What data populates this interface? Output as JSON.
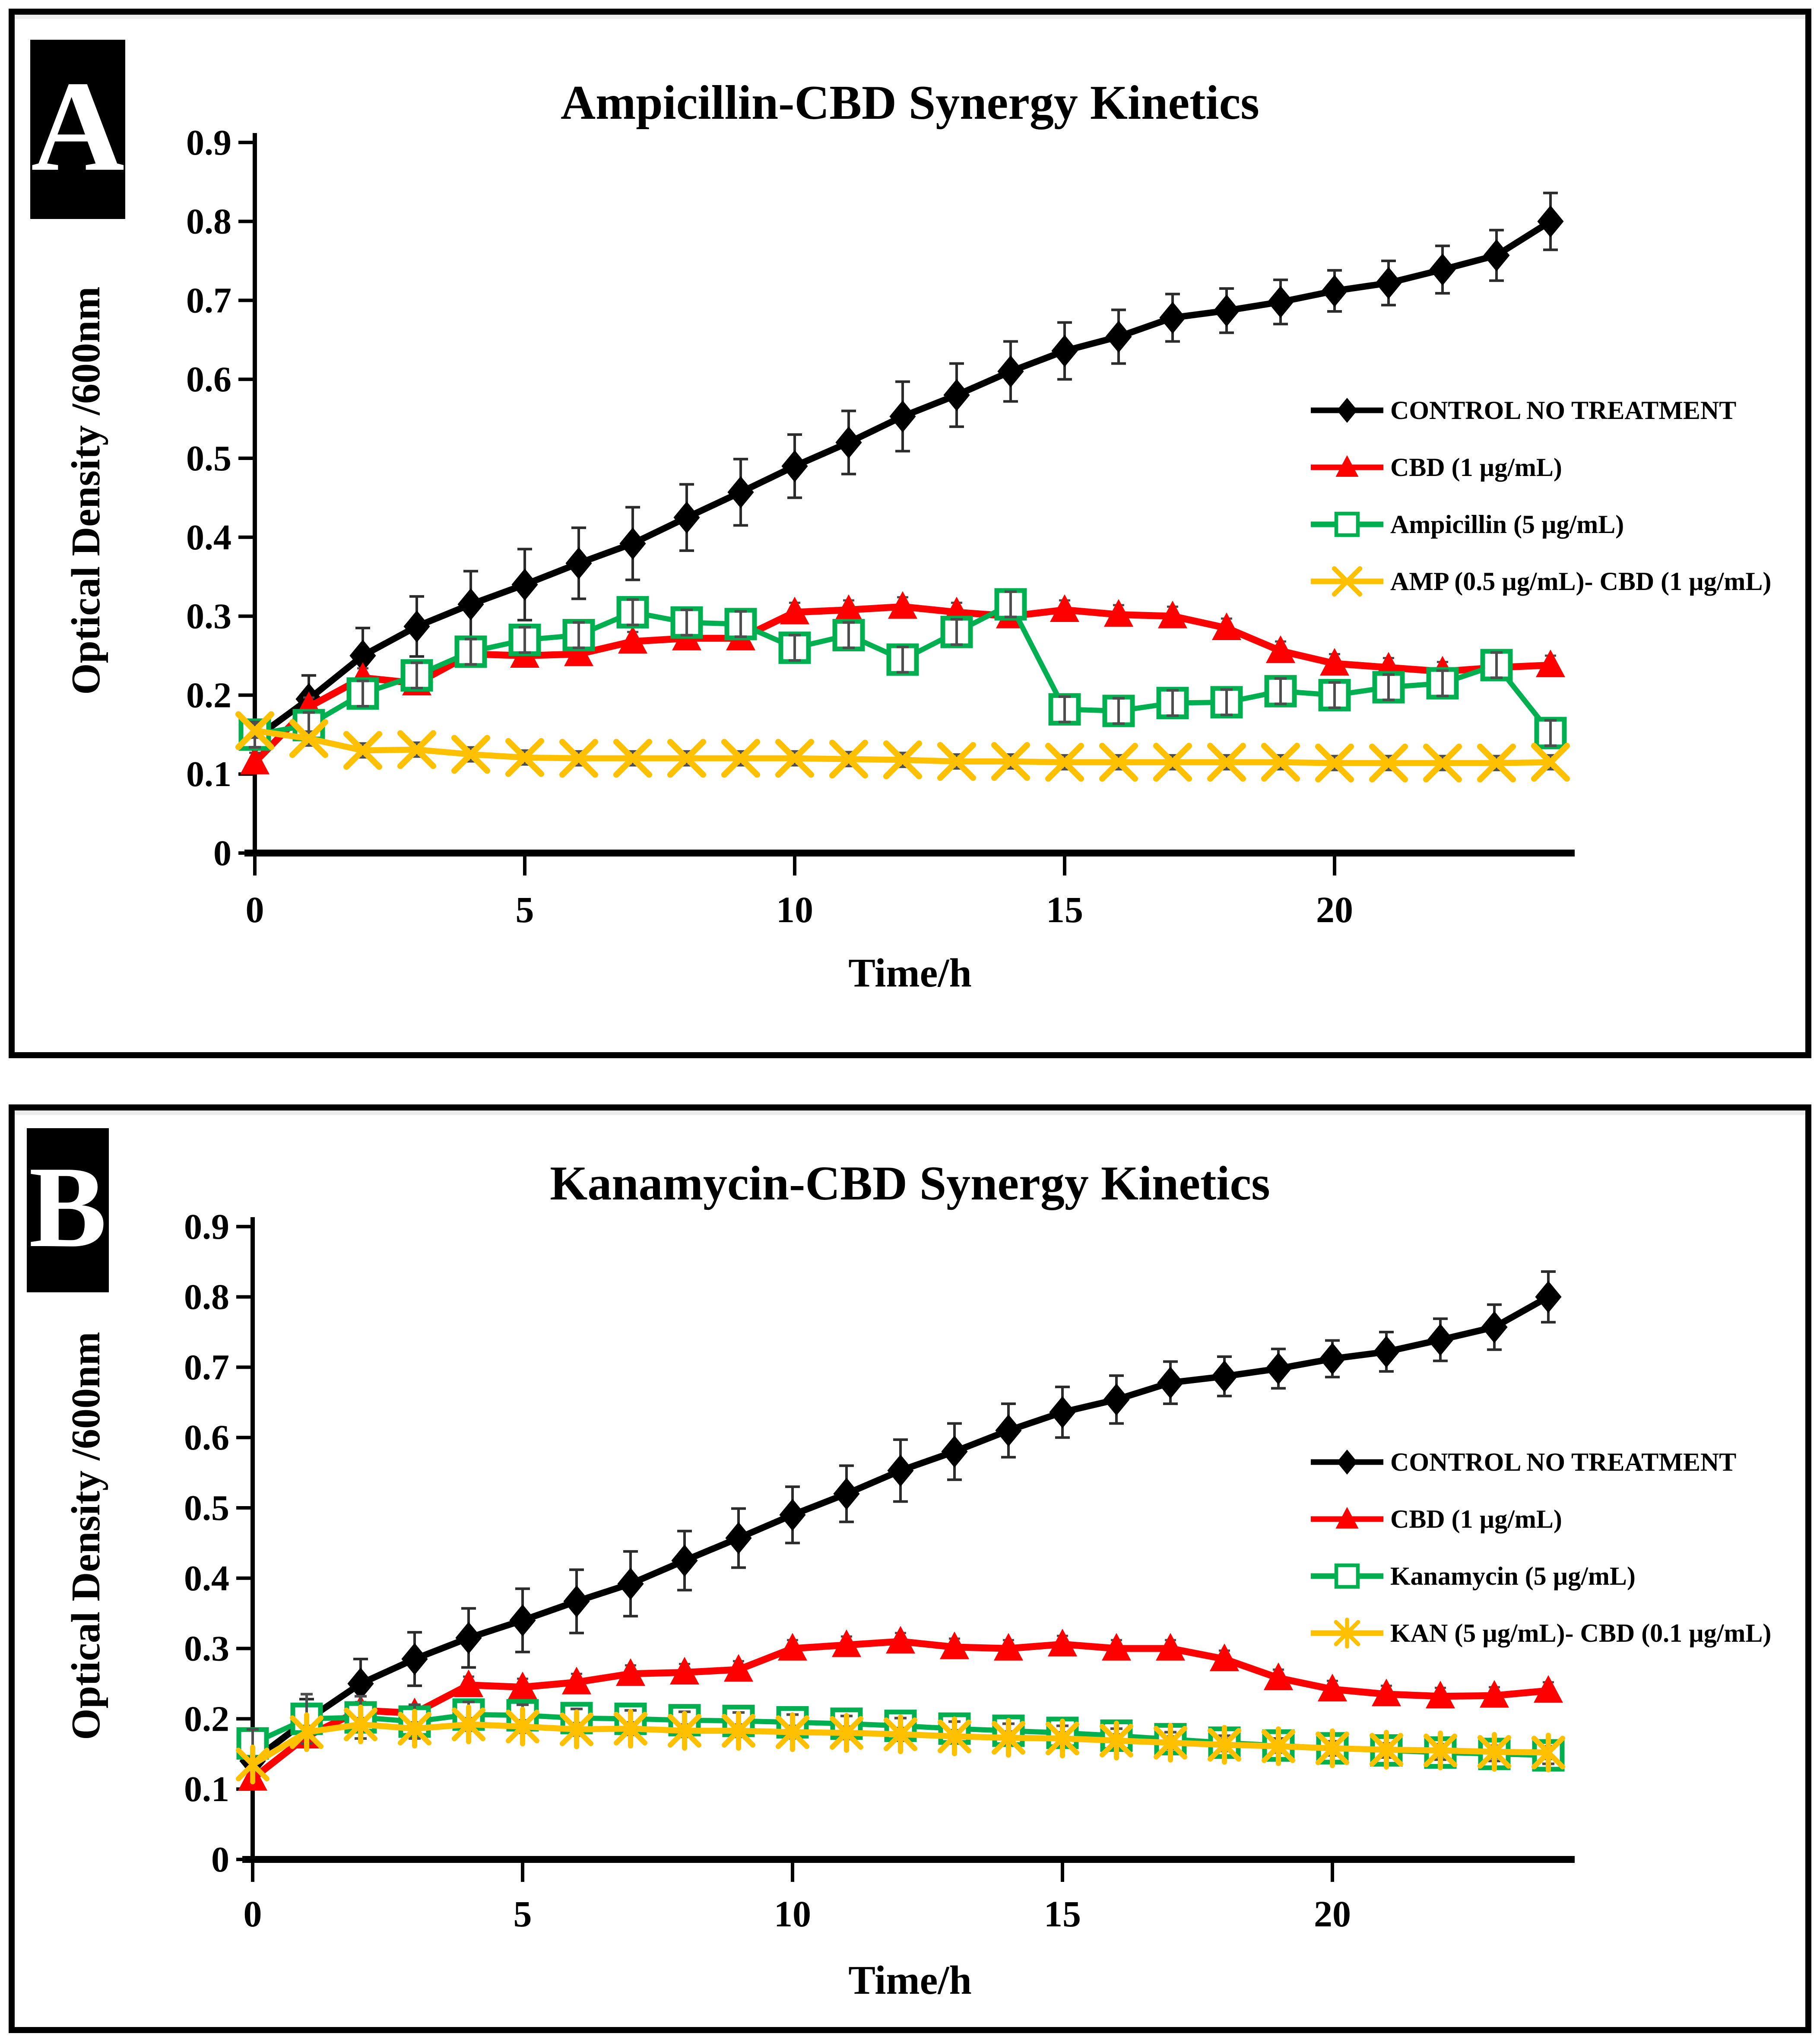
{
  "figure": {
    "panels": [
      {
        "badge": "A"
      },
      {
        "badge": "B"
      }
    ]
  },
  "chart_data": [
    {
      "type": "line",
      "title": "Ampicillin-CBD Synergy Kinetics",
      "xlabel": "Time/h",
      "ylabel": "Optical Density /600nm",
      "x": [
        0,
        1,
        2,
        3,
        4,
        5,
        6,
        7,
        8,
        9,
        10,
        11,
        12,
        13,
        14,
        15,
        16,
        17,
        18,
        19,
        20,
        21,
        22,
        23,
        24
      ],
      "x_ticks": [
        0,
        5,
        10,
        15,
        20
      ],
      "y_ticks": [
        0,
        0.1,
        0.2,
        0.3,
        0.4,
        0.5,
        0.6,
        0.7,
        0.8,
        0.9
      ],
      "xlim": [
        0,
        24.5
      ],
      "ylim": [
        0,
        0.9
      ],
      "grid": false,
      "legend_position": "middle-right",
      "series": [
        {
          "name": "CONTROL NO TREATMENT",
          "color": "#000000",
          "marker": "diamond",
          "line_width": 15,
          "error": [
            0.01,
            0.03,
            0.035,
            0.038,
            0.042,
            0.045,
            0.045,
            0.046,
            0.042,
            0.042,
            0.04,
            0.04,
            0.044,
            0.04,
            0.038,
            0.036,
            0.034,
            0.03,
            0.028,
            0.028,
            0.026,
            0.028,
            0.03,
            0.032,
            0.036
          ],
          "values": [
            0.145,
            0.195,
            0.25,
            0.287,
            0.315,
            0.34,
            0.367,
            0.392,
            0.425,
            0.457,
            0.49,
            0.52,
            0.553,
            0.58,
            0.61,
            0.636,
            0.654,
            0.678,
            0.687,
            0.698,
            0.712,
            0.722,
            0.739,
            0.757,
            0.8
          ]
        },
        {
          "name": "CBD (1 µg/mL)",
          "color": "#FF0000",
          "marker": "triangle",
          "line_width": 16,
          "error": 0.012,
          "values": [
            0.115,
            0.185,
            0.222,
            0.215,
            0.252,
            0.25,
            0.252,
            0.268,
            0.272,
            0.272,
            0.305,
            0.308,
            0.312,
            0.305,
            0.3,
            0.308,
            0.302,
            0.3,
            0.285,
            0.256,
            0.24,
            0.235,
            0.23,
            0.235,
            0.238
          ]
        },
        {
          "name": "Ampicillin (5 µg/mL)",
          "color": "#00B050",
          "marker": "square-open",
          "line_width": 12,
          "error": 0.016,
          "values": [
            0.15,
            0.162,
            0.202,
            0.225,
            0.255,
            0.27,
            0.276,
            0.305,
            0.292,
            0.29,
            0.26,
            0.276,
            0.245,
            0.28,
            0.315,
            0.182,
            0.18,
            0.19,
            0.191,
            0.205,
            0.2,
            0.21,
            0.215,
            0.238,
            0.152
          ]
        },
        {
          "name": "AMP (0.5 µg/mL)- CBD (1 µg/mL)",
          "color": "#FFC000",
          "marker": "x",
          "line_width": 14,
          "error": 0.009,
          "values": [
            0.155,
            0.145,
            0.13,
            0.131,
            0.125,
            0.121,
            0.12,
            0.12,
            0.12,
            0.12,
            0.12,
            0.119,
            0.118,
            0.116,
            0.116,
            0.115,
            0.115,
            0.115,
            0.115,
            0.115,
            0.114,
            0.114,
            0.114,
            0.114,
            0.115
          ]
        }
      ]
    },
    {
      "type": "line",
      "title": "Kanamycin-CBD Synergy Kinetics",
      "xlabel": "Time/h",
      "ylabel": "Optical Density /600nm",
      "x": [
        0,
        1,
        2,
        3,
        4,
        5,
        6,
        7,
        8,
        9,
        10,
        11,
        12,
        13,
        14,
        15,
        16,
        17,
        18,
        19,
        20,
        21,
        22,
        23,
        24
      ],
      "x_ticks": [
        0,
        5,
        10,
        15,
        20
      ],
      "y_ticks": [
        0,
        0.1,
        0.2,
        0.3,
        0.4,
        0.5,
        0.6,
        0.7,
        0.8,
        0.9
      ],
      "xlim": [
        0,
        24.5
      ],
      "ylim": [
        0,
        0.9
      ],
      "grid": false,
      "legend_position": "middle-right",
      "series": [
        {
          "name": "CONTROL NO TREATMENT",
          "color": "#000000",
          "marker": "diamond",
          "line_width": 15,
          "error": [
            0.01,
            0.03,
            0.035,
            0.038,
            0.042,
            0.045,
            0.045,
            0.046,
            0.042,
            0.042,
            0.04,
            0.04,
            0.044,
            0.04,
            0.038,
            0.036,
            0.034,
            0.03,
            0.028,
            0.028,
            0.026,
            0.028,
            0.03,
            0.032,
            0.036
          ],
          "values": [
            0.14,
            0.198,
            0.25,
            0.285,
            0.315,
            0.34,
            0.367,
            0.392,
            0.425,
            0.457,
            0.49,
            0.52,
            0.553,
            0.58,
            0.61,
            0.636,
            0.654,
            0.678,
            0.687,
            0.698,
            0.712,
            0.722,
            0.739,
            0.757,
            0.8
          ]
        },
        {
          "name": "CBD (1 µg/mL)",
          "color": "#FF0000",
          "marker": "triangle",
          "line_width": 16,
          "error": 0.012,
          "values": [
            0.115,
            0.175,
            0.212,
            0.208,
            0.248,
            0.245,
            0.252,
            0.264,
            0.266,
            0.27,
            0.3,
            0.305,
            0.31,
            0.302,
            0.3,
            0.306,
            0.3,
            0.3,
            0.285,
            0.258,
            0.242,
            0.235,
            0.232,
            0.233,
            0.24
          ]
        },
        {
          "name": "Kanamycin (5 µg/mL)",
          "color": "#00B050",
          "marker": "square-open",
          "line_width": 12,
          "error": [
            0.02,
            0.035,
            0.03,
            0.024,
            0.018,
            0.015,
            0.013,
            0.012,
            0.012,
            0.012,
            0.011,
            0.011,
            0.011,
            0.01,
            0.01,
            0.01,
            0.01,
            0.01,
            0.01,
            0.01,
            0.01,
            0.01,
            0.01,
            0.01,
            0.012
          ],
          "values": [
            0.165,
            0.2,
            0.202,
            0.196,
            0.206,
            0.205,
            0.201,
            0.2,
            0.198,
            0.197,
            0.195,
            0.193,
            0.19,
            0.186,
            0.183,
            0.18,
            0.176,
            0.171,
            0.166,
            0.162,
            0.158,
            0.155,
            0.152,
            0.15,
            0.148
          ]
        },
        {
          "name": "KAN (5 µg/mL)- CBD (0.1 µg/mL)",
          "color": "#FFC000",
          "marker": "asterisk",
          "line_width": 14,
          "error": 0.009,
          "values": [
            0.135,
            0.181,
            0.192,
            0.186,
            0.192,
            0.189,
            0.185,
            0.186,
            0.183,
            0.183,
            0.181,
            0.18,
            0.178,
            0.175,
            0.173,
            0.172,
            0.169,
            0.166,
            0.163,
            0.161,
            0.158,
            0.156,
            0.155,
            0.153,
            0.152
          ]
        }
      ]
    }
  ]
}
